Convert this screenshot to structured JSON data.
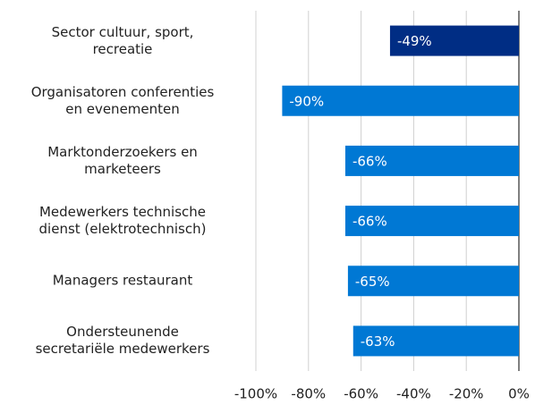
{
  "chart_data": {
    "type": "bar",
    "orientation": "horizontal",
    "categories": [
      "Sector cultuur, sport,\nrecreatie",
      "Organisatoren conferenties\nen evenementen",
      "Marktonderzoekers en\nmarketeers",
      "Medewerkers technische\ndienst (elektrotechnisch)",
      "Managers restaurant",
      "Ondersteunende\nsecretariële medewerkers"
    ],
    "values": [
      -49,
      -90,
      -66,
      -66,
      -65,
      -63
    ],
    "value_labels": [
      "-49%",
      "-90%",
      "-66%",
      "-66%",
      "-65%",
      "-63%"
    ],
    "colors": [
      "#002d84",
      "#0078d4",
      "#0078d4",
      "#0078d4",
      "#0078d4",
      "#0078d4"
    ],
    "xlim": [
      -100,
      0
    ],
    "xticks": [
      {
        "value": -100,
        "label": "-100%"
      },
      {
        "value": -80,
        "label": "-80%"
      },
      {
        "value": -60,
        "label": "-60%"
      },
      {
        "value": -40,
        "label": "-40%"
      },
      {
        "value": -20,
        "label": "-20%"
      },
      {
        "value": 0,
        "label": "0%"
      }
    ],
    "grid": true
  }
}
